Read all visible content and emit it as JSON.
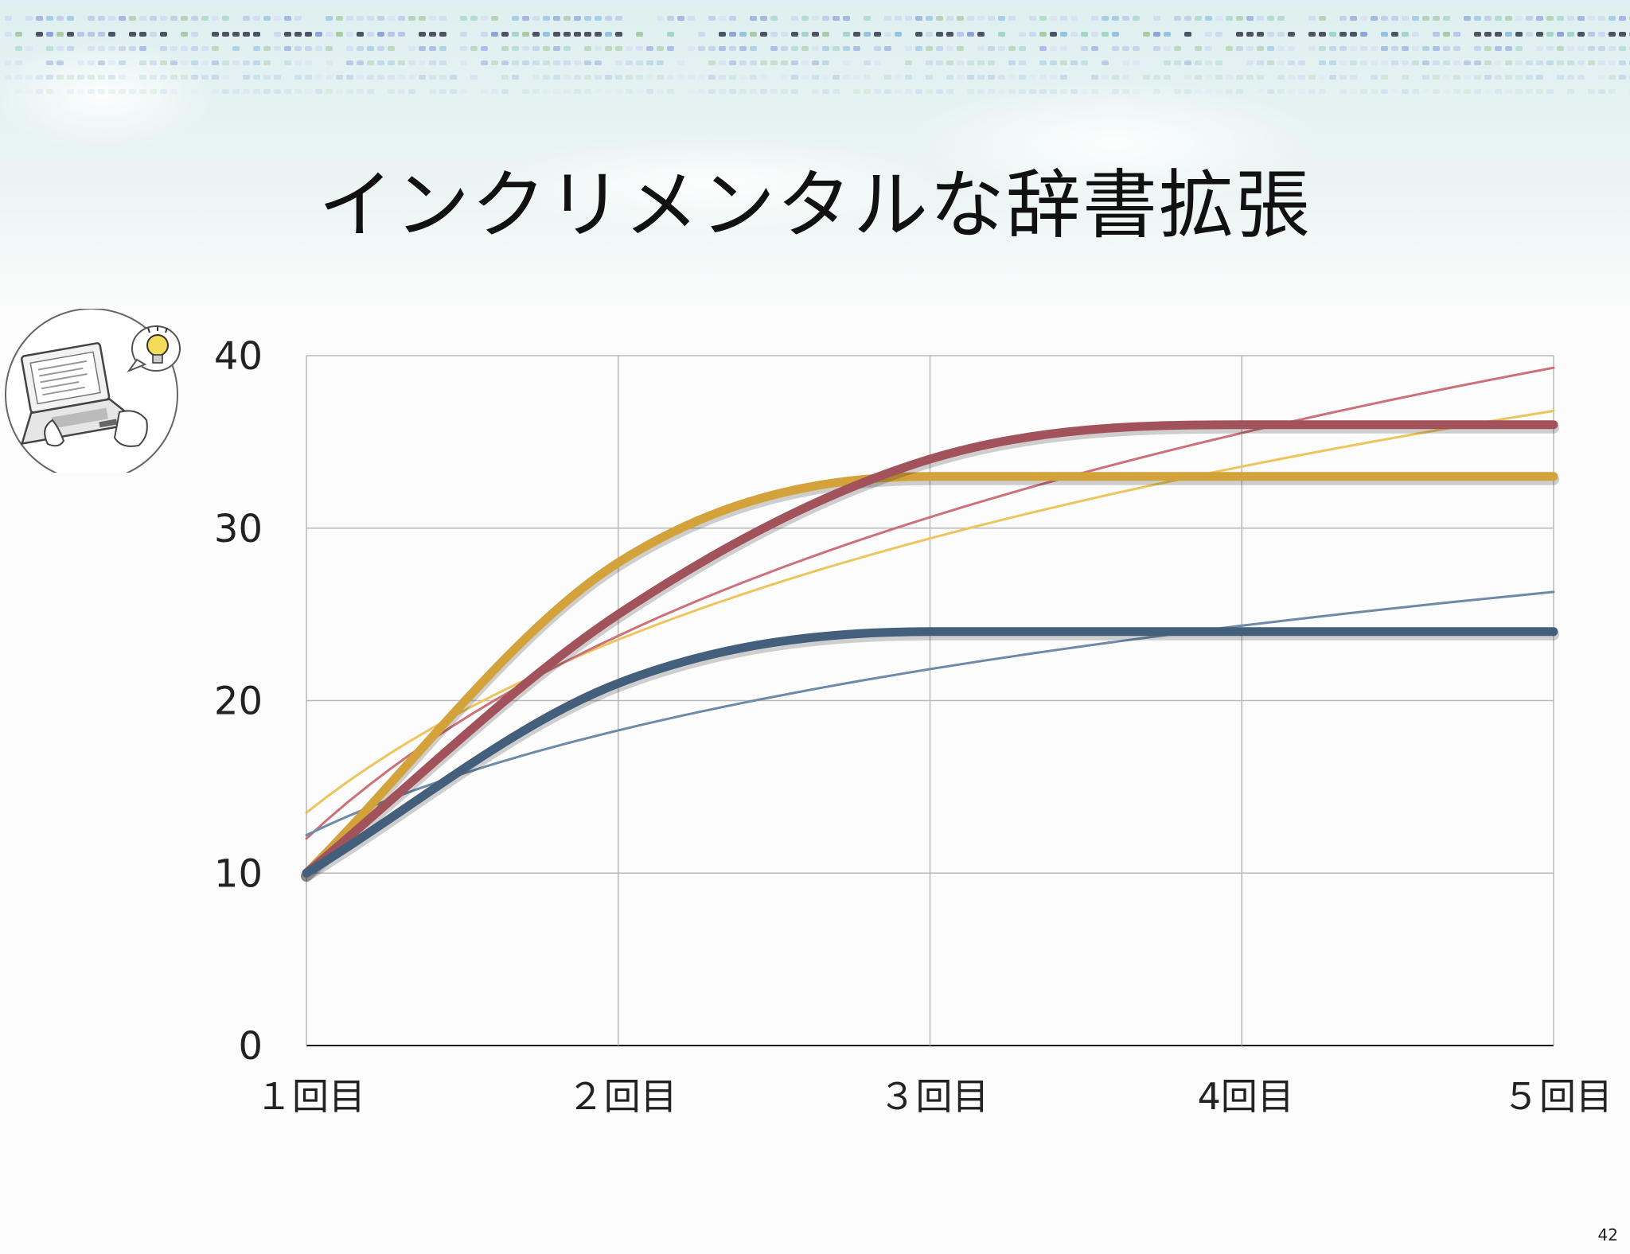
{
  "slide": {
    "title": "インクリメンタルな辞書拡張",
    "page_number": "42"
  },
  "colors": {
    "red": "#a2525a",
    "yellow": "#d4a23a",
    "blue": "#445f7b",
    "red_trend": "#cd7078",
    "yellow_trend": "#edc55c",
    "blue_trend": "#6d8aa8",
    "grid": "#b9b9b9"
  },
  "chart_data": {
    "type": "line",
    "categories": [
      "１回目",
      "２回目",
      "３回目",
      "4回目",
      "５回目"
    ],
    "ylim": [
      0,
      40
    ],
    "yticks": [
      "0",
      "10",
      "20",
      "30",
      "40"
    ],
    "grid": true,
    "legend": "none",
    "series": [
      {
        "color": "#d4a23a",
        "values": [
          10,
          28,
          33,
          33,
          33
        ]
      },
      {
        "color": "#a2525a",
        "values": [
          10,
          25,
          34,
          36,
          36
        ]
      },
      {
        "color": "#445f7b",
        "values": [
          10,
          21,
          24,
          24,
          24
        ]
      }
    ],
    "trendlines": [
      {
        "of_series": 0,
        "color": "#edc55c",
        "type": "log",
        "start": 13.5,
        "end": 36.8
      },
      {
        "of_series": 1,
        "color": "#cd7078",
        "type": "log",
        "start": 12,
        "end": 39.3
      },
      {
        "of_series": 2,
        "color": "#6d8aa8",
        "type": "log",
        "start": 12.2,
        "end": 26.3
      }
    ]
  }
}
